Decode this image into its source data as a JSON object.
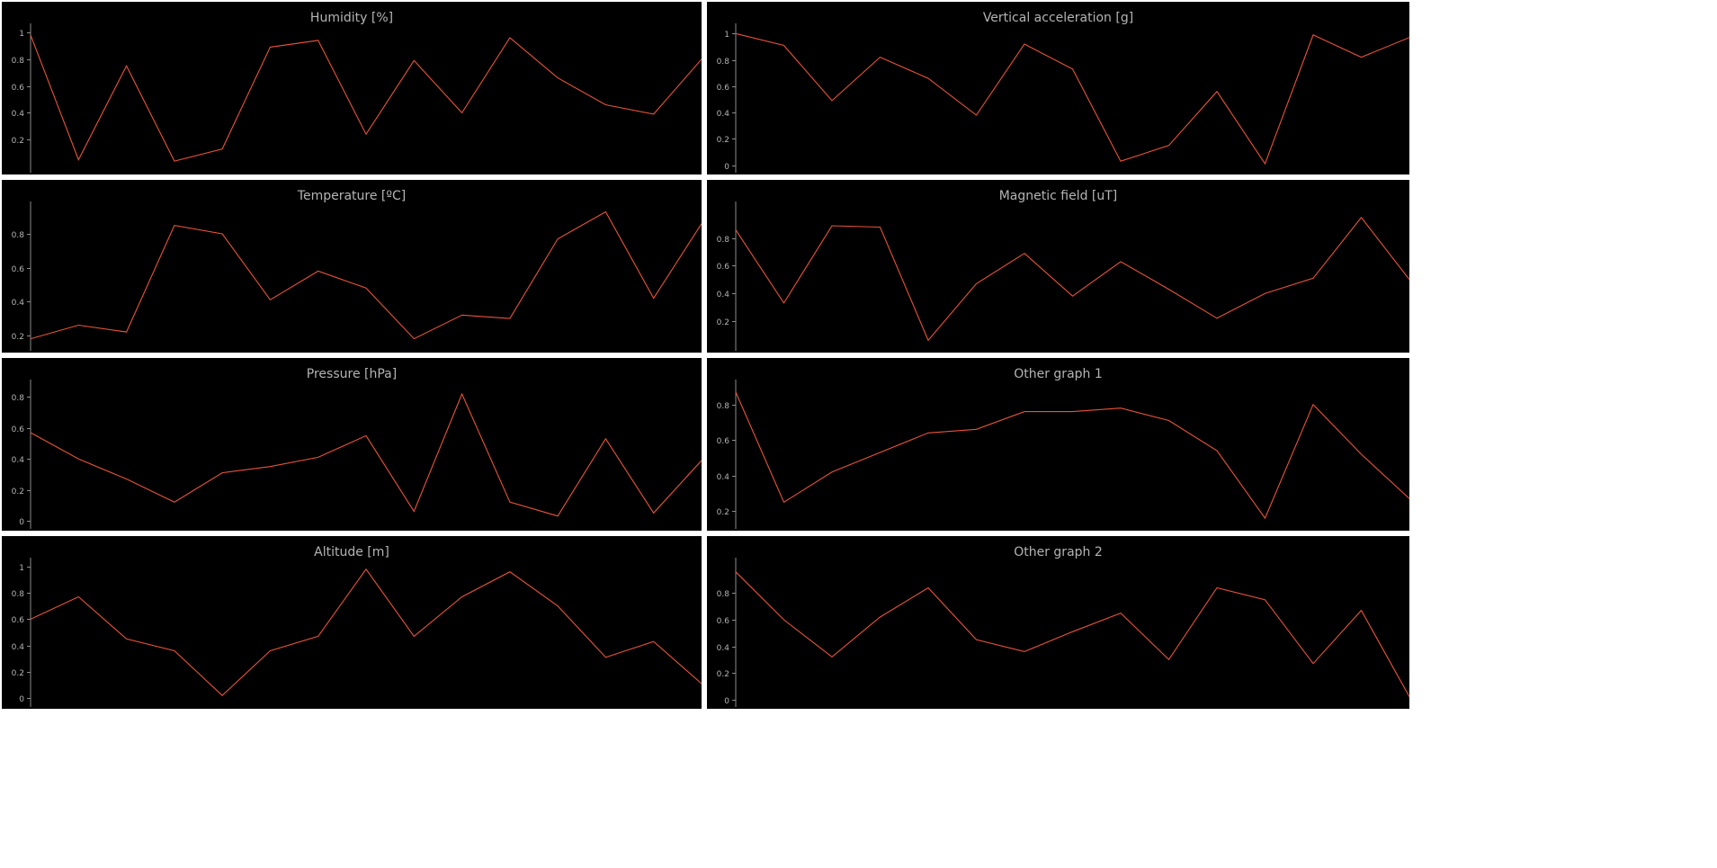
{
  "colors": {
    "background": "#000000",
    "line": "#e8533a",
    "axis": "#8c8c8c",
    "text": "#b4b4b4",
    "separator": "#ffffff"
  },
  "chart_data": [
    {
      "type": "line",
      "title": "Humidity [%]",
      "ylim": [
        -0.02,
        1.04
      ],
      "yticks": [
        1,
        0.8,
        0.6,
        0.4,
        0.2
      ],
      "values": [
        0.98,
        0.05,
        0.75,
        0.04,
        0.13,
        0.89,
        0.94,
        0.24,
        0.79,
        0.4,
        0.96,
        0.66,
        0.46,
        0.39,
        0.8
      ]
    },
    {
      "type": "line",
      "title": "Vertical acceleration [g]",
      "ylim": [
        -0.03,
        1.05
      ],
      "yticks": [
        1,
        0.8,
        0.6,
        0.4,
        0.2,
        0
      ],
      "values": [
        1.0,
        0.91,
        0.49,
        0.82,
        0.66,
        0.38,
        0.92,
        0.73,
        0.03,
        0.15,
        0.56,
        0.01,
        0.99,
        0.82,
        0.97
      ]
    },
    {
      "type": "line",
      "title": "Temperature [ºC]",
      "ylim": [
        0.13,
        0.97
      ],
      "yticks": [
        0.8,
        0.6,
        0.4,
        0.2
      ],
      "values": [
        0.18,
        0.26,
        0.22,
        0.85,
        0.8,
        0.41,
        0.58,
        0.48,
        0.18,
        0.32,
        0.3,
        0.77,
        0.93,
        0.42,
        0.86
      ]
    },
    {
      "type": "line",
      "title": "Magnetic field [uT]",
      "ylim": [
        0.01,
        1.04
      ],
      "yticks": [
        0.8,
        0.6,
        0.4,
        0.2
      ],
      "values": [
        0.86,
        0.33,
        0.89,
        0.88,
        0.06,
        0.47,
        0.69,
        0.38,
        0.63,
        0.43,
        0.22,
        0.4,
        0.51,
        0.95,
        0.5
      ]
    },
    {
      "type": "line",
      "title": "Pressure [hPa]",
      "ylim": [
        -0.03,
        0.89
      ],
      "yticks": [
        0.8,
        0.6,
        0.4,
        0.2,
        0
      ],
      "values": [
        0.57,
        0.4,
        0.27,
        0.12,
        0.31,
        0.35,
        0.41,
        0.55,
        0.06,
        0.82,
        0.12,
        0.03,
        0.53,
        0.05,
        0.39
      ]
    },
    {
      "type": "line",
      "title": "Other graph 1",
      "ylim": [
        0.12,
        0.92
      ],
      "yticks": [
        0.8,
        0.6,
        0.4,
        0.2
      ],
      "values": [
        0.87,
        0.25,
        0.42,
        0.53,
        0.64,
        0.66,
        0.76,
        0.76,
        0.78,
        0.71,
        0.54,
        0.16,
        0.8,
        0.52,
        0.27
      ]
    },
    {
      "type": "line",
      "title": "Altitude [m]",
      "ylim": [
        -0.04,
        1.04
      ],
      "yticks": [
        1,
        0.8,
        0.6,
        0.4,
        0.2,
        0
      ],
      "values": [
        0.6,
        0.77,
        0.45,
        0.36,
        0.02,
        0.36,
        0.47,
        0.98,
        0.47,
        0.77,
        0.96,
        0.7,
        0.31,
        0.43,
        0.11
      ]
    },
    {
      "type": "line",
      "title": "Other graph 2",
      "ylim": [
        -0.03,
        1.04
      ],
      "yticks": [
        0.8,
        0.6,
        0.4,
        0.2,
        0
      ],
      "values": [
        0.96,
        0.6,
        0.32,
        0.62,
        0.84,
        0.45,
        0.36,
        0.51,
        0.65,
        0.3,
        0.84,
        0.75,
        0.27,
        0.67,
        0.02
      ]
    }
  ]
}
